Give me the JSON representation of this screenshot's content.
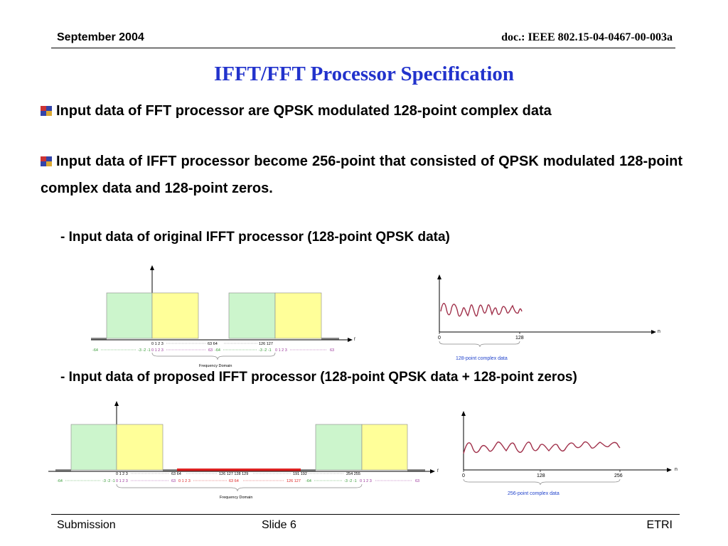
{
  "header": {
    "date": "September 2004",
    "doc": "doc.: IEEE 802.15-04-0467-00-003a"
  },
  "title": "IFFT/FFT Processor Specification",
  "bullets": [
    "Input data of FFT processor are QPSK modulated 128-point complex data",
    "Input data of IFFT processor become 256-point that consisted of QPSK modulated 128-point complex data and 128-point zeros."
  ],
  "subheading_1": "- Input data of original IFFT processor (128-point QPSK data)",
  "subheading_2": "- Input data of proposed IFFT processor  (128-point QPSK data + 128-point zeros)",
  "diagram1": {
    "f_label": "f",
    "row1": {
      "a": "0 1 2 3",
      "b": "63  64",
      "c": "126 127"
    },
    "row2": {
      "a": "-64",
      "b": "-3 -2 -1",
      "c": "0 1 2 3",
      "d": "63",
      "e": "-64",
      "f": "-3 -2 -1",
      "g": "0 1 2 3",
      "h": "63"
    },
    "caption": "Frequency Domain"
  },
  "wave1": {
    "n_label": "n",
    "tick0": "0",
    "tick1": "128",
    "caption": "128-point complex data"
  },
  "diagram2": {
    "f_label": "f",
    "row1": {
      "a": "0 1 2 3",
      "b": "63 64",
      "c": "126 127 128 129",
      "d": "191 192",
      "e": "254 255"
    },
    "row2": {
      "a": "-64",
      "b": "-3 -2 -1",
      "c": "0 1 2 3",
      "d": "63",
      "e": "0 1 2 3",
      "f": "63  64",
      "g": "126 127",
      "h": "-64",
      "i": "-3 -2 -1",
      "j": "0 1 2 3",
      "k": "63"
    },
    "caption": "Frequency Domain"
  },
  "wave2": {
    "n_label": "n",
    "tick0": "0",
    "tick1": "128",
    "tick2": "256",
    "caption": "256-point complex data"
  },
  "footer": {
    "left": "Submission",
    "center": "Slide 6",
    "right": "ETRI"
  },
  "colors": {
    "title": "#2233cc",
    "green_block": "#ccf5cc",
    "yellow_block": "#ffff99",
    "zero_line": "#dd2222",
    "wave": "#a0304a",
    "caption_blue": "#2244cc",
    "label_green": "#339933",
    "label_purple": "#993399"
  }
}
